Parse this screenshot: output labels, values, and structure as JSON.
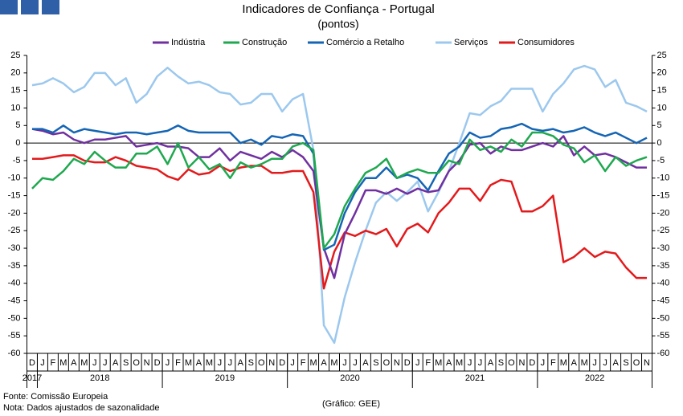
{
  "chart_data": {
    "type": "line",
    "title": "Indicadores de Confiança - Portugal",
    "subtitle": "(pontos)",
    "categories": [
      "D",
      "J",
      "F",
      "M",
      "A",
      "M",
      "J",
      "J",
      "A",
      "S",
      "O",
      "N",
      "D",
      "J",
      "F",
      "M",
      "A",
      "M",
      "J",
      "J",
      "A",
      "S",
      "O",
      "N",
      "D",
      "J",
      "F",
      "M",
      "A",
      "M",
      "J",
      "J",
      "A",
      "S",
      "O",
      "N",
      "D",
      "J",
      "F",
      "M",
      "A",
      "M",
      "J",
      "J",
      "A",
      "S",
      "O",
      "N",
      "D",
      "J",
      "F",
      "M",
      "A",
      "M",
      "J",
      "J",
      "A",
      "S",
      "O",
      "N"
    ],
    "year_labels": [
      {
        "label": "2017",
        "months": 1
      },
      {
        "label": "2018",
        "months": 12
      },
      {
        "label": "2019",
        "months": 12
      },
      {
        "label": "2020",
        "months": 12
      },
      {
        "label": "2021",
        "months": 12
      },
      {
        "label": "2022",
        "months": 11
      }
    ],
    "series": [
      {
        "name": "Indústria",
        "color": "#7030a0",
        "values": [
          4,
          3.5,
          2.5,
          3,
          1,
          0,
          1,
          1,
          1.5,
          2,
          -1,
          -0.5,
          0,
          -1,
          -1,
          -1.5,
          -4,
          -4,
          -1.5,
          -5,
          -2.5,
          -3.5,
          -4.5,
          -2.5,
          -4,
          -2,
          -4,
          -8,
          -30,
          -38.5,
          -26,
          -20,
          -13.5,
          -13.5,
          -14.5,
          -13,
          -14.5,
          -13,
          -14,
          -13.5,
          -8,
          -5,
          -0.5,
          0,
          -3,
          -1,
          -2,
          -2,
          -1,
          0,
          -1,
          2,
          -3.5,
          -1,
          -3.5,
          -3,
          -4,
          -5.5,
          -7,
          -7
        ]
      },
      {
        "name": "Construção",
        "color": "#1fa84f",
        "values": [
          -13,
          -10,
          -10.5,
          -8,
          -4.5,
          -6,
          -2.5,
          -5,
          -7,
          -7,
          -3,
          -3,
          -1,
          -6,
          0,
          -7,
          -4,
          -7.5,
          -6,
          -10,
          -5.5,
          -7,
          -6,
          -4.5,
          -4.5,
          -1,
          0,
          -2,
          -30,
          -26,
          -18,
          -13,
          -8.5,
          -7,
          -4.5,
          -10,
          -8.5,
          -7.5,
          -8.5,
          -8.5,
          -5,
          -6,
          1,
          -2,
          -1,
          -2.5,
          1,
          -1,
          3,
          3,
          2,
          -0.5,
          -1.5,
          -5.5,
          -3.5,
          -8,
          -4,
          -6.5,
          -5,
          -4
        ]
      },
      {
        "name": "Comércio a Retalho",
        "color": "#1565b5",
        "values": [
          4,
          4,
          3,
          5,
          3,
          4,
          3.5,
          3,
          2.5,
          3,
          3,
          2.5,
          3,
          3.5,
          5,
          3.5,
          3,
          3,
          3,
          3,
          0,
          1,
          -0.5,
          2,
          1.5,
          2.5,
          2,
          -3,
          -30.5,
          -29,
          -20,
          -14,
          -10,
          -10,
          -7,
          -10,
          -9,
          -10,
          -13.5,
          -8,
          -3,
          -1,
          3,
          1.5,
          2,
          4,
          4.5,
          5.5,
          4,
          3.5,
          4,
          3,
          3.5,
          4.5,
          3,
          2,
          3,
          1.5,
          0,
          1.5
        ]
      },
      {
        "name": "Serviços",
        "color": "#9cc8ee",
        "values": [
          16.5,
          17,
          18.5,
          17,
          14.5,
          16,
          20,
          20,
          16.5,
          18.5,
          11.5,
          14,
          19,
          21.5,
          19,
          17,
          17.5,
          16.5,
          14.5,
          14,
          11,
          11.5,
          14,
          14,
          9,
          12.5,
          14,
          -2,
          -52,
          -57,
          -44,
          -34,
          -25,
          -17,
          -14,
          -16.5,
          -14,
          -11,
          -19.5,
          -14,
          -8,
          0,
          8.5,
          8,
          10.5,
          12,
          15.5,
          15.5,
          15.5,
          9,
          14,
          17,
          21,
          22,
          21,
          16,
          18,
          11.5,
          10.5,
          9
        ]
      },
      {
        "name": "Consumidores",
        "color": "#e31a1c",
        "values": [
          -4.5,
          -4.5,
          -4,
          -3.5,
          -3.5,
          -5,
          -5.5,
          -5.5,
          -4,
          -5,
          -6.5,
          -7,
          -7.5,
          -9.5,
          -10.5,
          -7.5,
          -9,
          -8.5,
          -6.5,
          -8,
          -7,
          -6.5,
          -6.5,
          -8.5,
          -8.5,
          -8,
          -8,
          -14,
          -41.5,
          -31,
          -25.5,
          -26.5,
          -25,
          -26,
          -24.5,
          -29.5,
          -24.5,
          -23,
          -25.5,
          -20,
          -17,
          -13,
          -13,
          -16.5,
          -12,
          -10.5,
          -11,
          -19.5,
          -19.5,
          -18,
          -15,
          -34,
          -32.5,
          -30,
          -32.5,
          -31,
          -31.5,
          -35.5,
          -38.5,
          -38.5
        ]
      }
    ],
    "ylim": [
      -60,
      25
    ],
    "yticks": [
      25,
      20,
      15,
      10,
      5,
      0,
      -5,
      -10,
      -15,
      -20,
      -25,
      -30,
      -35,
      -40,
      -45,
      -50,
      -55,
      -60
    ],
    "y2lim": [
      -60,
      25
    ],
    "y2ticks": [
      25,
      20,
      15,
      10,
      5,
      0,
      -5,
      -10,
      -15,
      -20,
      -25,
      -30,
      -35,
      -40,
      -45,
      -50,
      -55,
      -60
    ],
    "grid": false,
    "legend": "top",
    "source": "Fonte: Comissão Europeia",
    "note": "Nota: Dados ajustados de sazonalidade",
    "credit": "(Gráfico: GEE)"
  }
}
